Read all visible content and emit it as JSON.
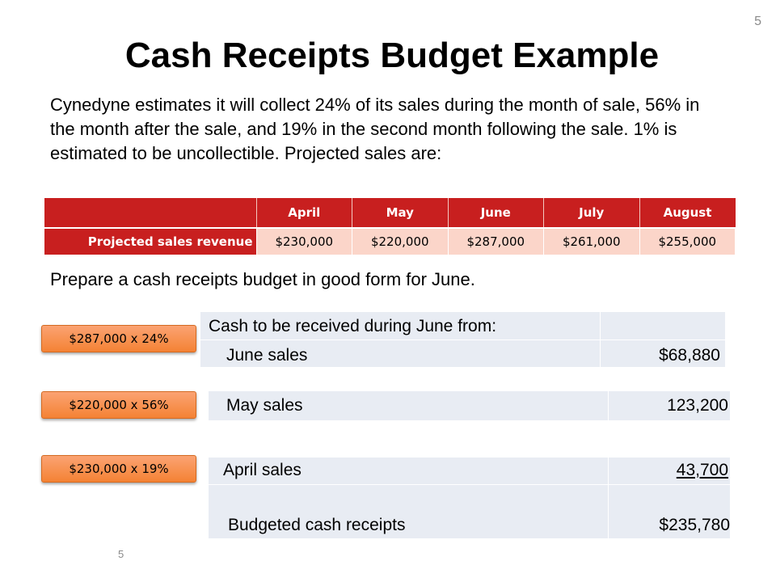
{
  "page_number": "5",
  "title": "Cash Receipts Budget Example",
  "intro": "Cynedyne estimates it will collect 24% of its sales during the month of sale, 56% in the month after the sale, and 19% in the second month following the sale. 1% is estimated to be uncollectible. Projected sales are:",
  "sales_table": {
    "columns": [
      "April",
      "May",
      "June",
      "July",
      "August"
    ],
    "row_label": "Projected sales revenue",
    "values": [
      "$230,000",
      "$220,000",
      "$287,000",
      "$261,000",
      "$255,000"
    ]
  },
  "prepare_text": "Prepare a cash receipts budget in good form for June.",
  "calc_labels": [
    "$287,000 x 24%",
    "$220,000 x 56%",
    "$230,000 x 19%"
  ],
  "budget": {
    "header": "Cash to be received during June from:",
    "june_label": "June sales",
    "june_value": "$68,880",
    "may_label": "May sales",
    "may_value": "123,200",
    "april_label": "April sales",
    "april_value": "43,700",
    "total_label": "Budgeted cash receipts",
    "total_value": "$235,780"
  },
  "colors": {
    "table_header": "#c81f1f",
    "table_cell": "#fbd5c9",
    "button_orange": "#f48234",
    "budget_box": "#e8ecf3"
  }
}
